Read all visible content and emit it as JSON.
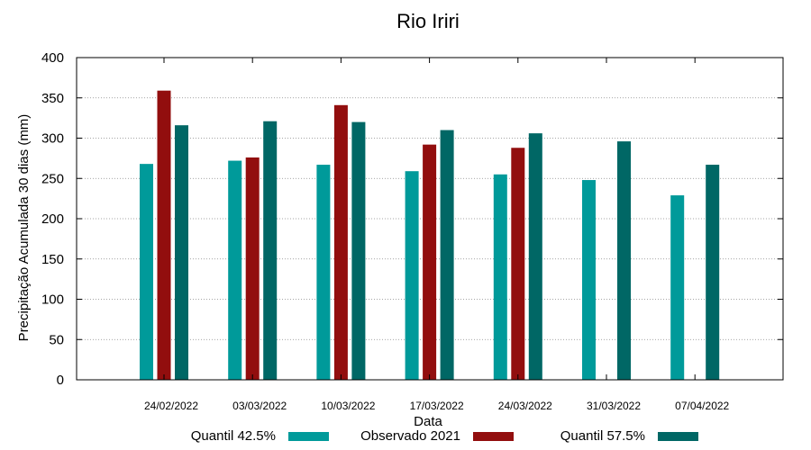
{
  "chart_data": {
    "type": "bar",
    "title": "Rio Iriri",
    "xlabel": "Data",
    "ylabel": "Precipitação Acumulada 30 dias (mm)",
    "ylim": [
      0,
      400
    ],
    "yticks": [
      0,
      50,
      100,
      150,
      200,
      250,
      300,
      350,
      400
    ],
    "grid": true,
    "legend_position": "bottom",
    "categories": [
      "24/02/2022",
      "03/03/2022",
      "10/03/2022",
      "17/03/2022",
      "24/03/2022",
      "31/03/2022",
      "07/04/2022"
    ],
    "series": [
      {
        "name": "Quantil 42.5%",
        "color": "#009a9a",
        "values": [
          268,
          272,
          267,
          259,
          255,
          248,
          229
        ]
      },
      {
        "name": "Observado 2021",
        "color": "#920e0e",
        "values": [
          359,
          276,
          341,
          292,
          288,
          null,
          null
        ]
      },
      {
        "name": "Quantil 57.5%",
        "color": "#006765",
        "values": [
          316,
          321,
          320,
          310,
          306,
          296,
          267
        ]
      }
    ]
  }
}
